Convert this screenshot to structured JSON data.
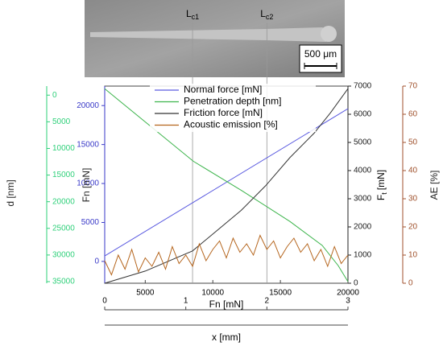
{
  "chart_data": {
    "type": "line",
    "scale_bar": "500 μm",
    "annotations": [
      {
        "main": "L",
        "sub": "c1",
        "x": 8500
      },
      {
        "main": "L",
        "sub": "c2",
        "x": 14000
      }
    ],
    "x_label": "Fn [mN]",
    "xlim": [
      2000,
      20000
    ],
    "xticks": [
      5000,
      10000,
      15000,
      20000
    ],
    "x2_label": "x [mm]",
    "x2lim": [
      0,
      3
    ],
    "x2ticks": [
      0,
      1,
      2,
      3
    ],
    "y_label": "Fn [mN]",
    "y_color": "#3a3ac8",
    "ylim": [
      -2800,
      22500
    ],
    "yticks": [
      0,
      5000,
      10000,
      15000,
      20000
    ],
    "y2_label": {
      "main": "F",
      "sub": "t",
      "unit": "[mN]"
    },
    "y2_color": "#222222",
    "y2lim": [
      0,
      7000
    ],
    "y2ticks": [
      0,
      1000,
      2000,
      3000,
      4000,
      5000,
      6000,
      7000
    ],
    "y3_label": "d [nm]",
    "y3_color": "#2fd07a",
    "y3lim": [
      35300,
      -1700
    ],
    "y3ticks": [
      0,
      5000,
      10000,
      15000,
      20000,
      25000,
      30000,
      35000
    ],
    "y4_label": "AE [%]",
    "y4_color": "#a0522d",
    "y4lim": [
      0,
      70
    ],
    "y4ticks": [
      0,
      10,
      20,
      30,
      40,
      50,
      60,
      70
    ],
    "series": [
      {
        "name": "Normal force [mN]",
        "color": "#5a5ae0",
        "axis": "y",
        "x": [
          2000,
          20000
        ],
        "values": [
          700,
          19600
        ]
      },
      {
        "name": "Penetration depth [nm]",
        "color": "#3cb44b",
        "axis": "y3",
        "x": [
          2000,
          8555,
          12130,
          15700,
          18090,
          19280,
          20000
        ],
        "values": [
          -1200,
          12400,
          17900,
          23700,
          28200,
          32000,
          35000
        ]
      },
      {
        "name": "Friction force [mN]",
        "color": "#333333",
        "axis": "y2",
        "x": [
          2000,
          5000,
          8500,
          10300,
          12100,
          13900,
          15700,
          17500,
          18700,
          20000
        ],
        "values": [
          0,
          430,
          1150,
          1870,
          2590,
          3460,
          4460,
          5330,
          6050,
          6910
        ]
      },
      {
        "name": "Acoustic emission [%]",
        "color": "#b5651d",
        "axis": "y4",
        "x": [
          2000,
          2500,
          3000,
          3500,
          4000,
          4500,
          5000,
          5500,
          6000,
          6500,
          7000,
          7500,
          8000,
          8500,
          9000,
          9500,
          10000,
          10500,
          11000,
          11500,
          12000,
          12500,
          13000,
          13500,
          14000,
          14500,
          15000,
          15500,
          16000,
          16500,
          17000,
          17500,
          18000,
          18500,
          19000,
          19500,
          20000
        ],
        "values": [
          8,
          3,
          10,
          5,
          12,
          4,
          9,
          6,
          11,
          5,
          13,
          7,
          10,
          6,
          14,
          8,
          12,
          15,
          9,
          16,
          11,
          14,
          10,
          17,
          12,
          15,
          9,
          13,
          16,
          11,
          14,
          8,
          12,
          6,
          13,
          7,
          10
        ]
      }
    ]
  }
}
